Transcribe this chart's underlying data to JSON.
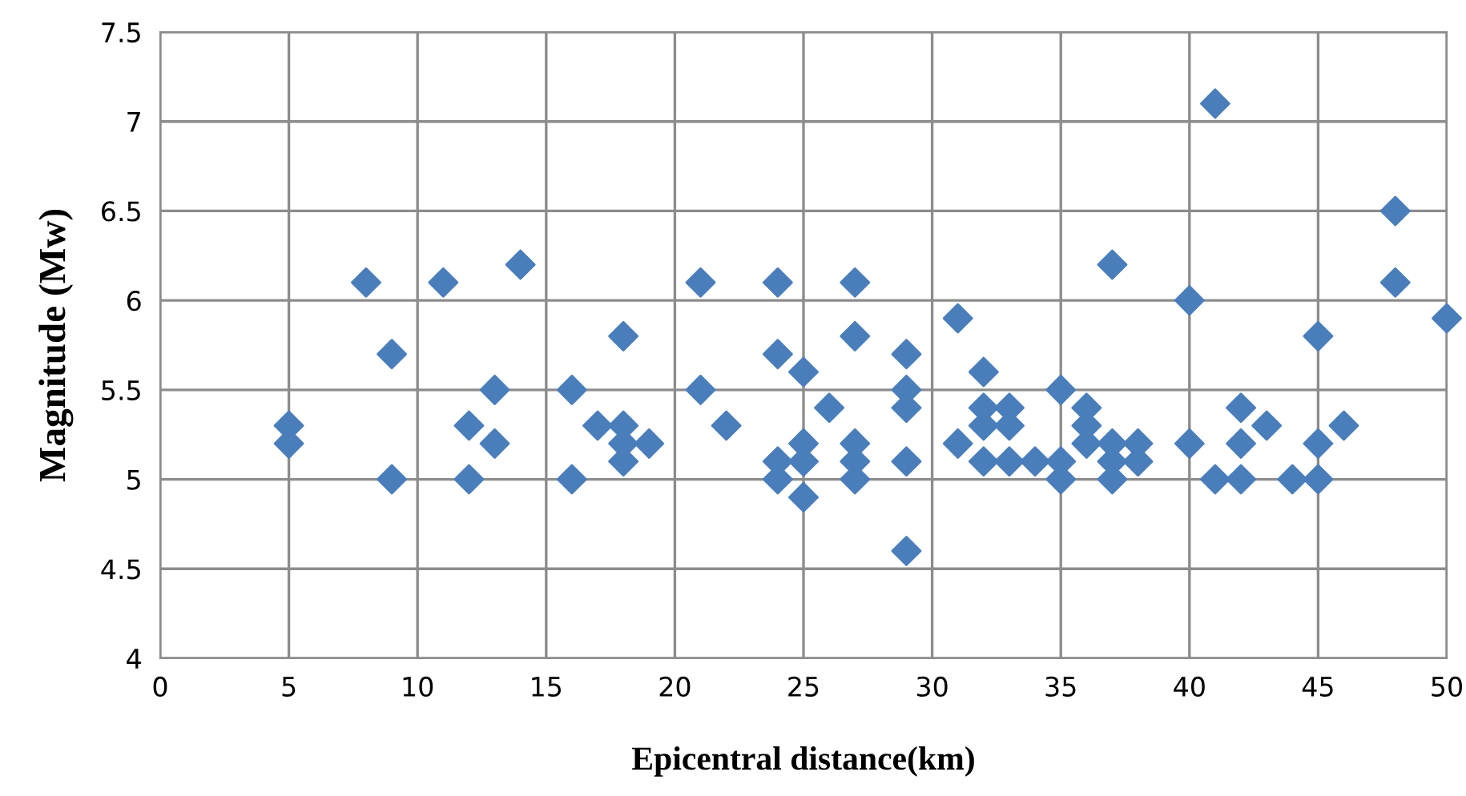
{
  "chart_data": {
    "type": "scatter",
    "xlabel": "Epicentral distance(km)",
    "ylabel": "Magnitude (Mw)",
    "xlim": [
      0,
      50
    ],
    "xticks": [
      0,
      5,
      10,
      15,
      20,
      25,
      30,
      35,
      40,
      45,
      50
    ],
    "ylim": [
      4,
      7.5
    ],
    "yticks": [
      4,
      4.5,
      5,
      5.5,
      6,
      6.5,
      7,
      7.5
    ],
    "grid": true,
    "marker": "diamond",
    "series": [
      {
        "color": "#4a7ebb",
        "x": [
          5,
          5,
          8,
          9,
          9,
          11,
          12,
          12,
          13,
          13,
          14,
          16,
          16,
          17,
          18,
          18,
          18,
          18,
          19,
          21,
          21,
          22,
          24,
          24,
          24,
          24,
          25,
          25,
          25,
          25,
          26,
          27,
          27,
          27,
          27,
          27,
          29,
          29,
          29,
          29,
          29,
          31,
          31,
          32,
          32,
          32,
          32,
          33,
          33,
          33,
          34,
          35,
          35,
          35,
          36,
          36,
          36,
          37,
          37,
          37,
          37,
          38,
          38,
          40,
          40,
          41,
          41,
          42,
          42,
          42,
          43,
          44,
          45,
          45,
          45,
          46,
          48,
          48,
          50
        ],
        "values": [
          5.3,
          5.2,
          6.1,
          5.7,
          5.0,
          6.1,
          5.3,
          5.0,
          5.5,
          5.2,
          6.2,
          5.5,
          5.0,
          5.3,
          5.8,
          5.3,
          5.2,
          5.1,
          5.2,
          6.1,
          5.5,
          5.3,
          6.1,
          5.7,
          5.1,
          5.0,
          5.6,
          5.2,
          5.1,
          4.9,
          5.4,
          6.1,
          5.8,
          5.2,
          5.1,
          5.0,
          5.7,
          5.5,
          5.4,
          5.1,
          4.6,
          5.9,
          5.2,
          5.6,
          5.4,
          5.3,
          5.1,
          5.4,
          5.3,
          5.1,
          5.1,
          5.5,
          5.1,
          5.0,
          5.4,
          5.3,
          5.2,
          6.2,
          5.2,
          5.1,
          5.0,
          5.2,
          5.1,
          6.0,
          5.2,
          7.1,
          5.0,
          5.4,
          5.2,
          5.0,
          5.3,
          5.0,
          5.8,
          5.2,
          5.0,
          5.3,
          6.5,
          6.1,
          5.9
        ]
      }
    ]
  }
}
